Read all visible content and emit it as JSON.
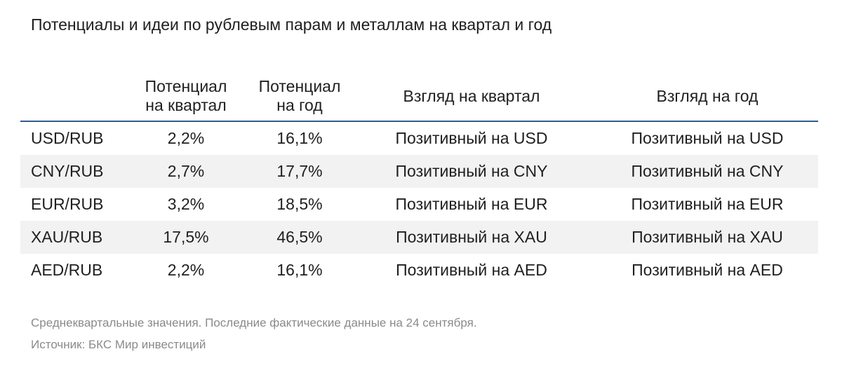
{
  "title": "Потенциалы и идеи по рублевым парам и металлам на квартал и год",
  "table": {
    "headers": {
      "pair": "",
      "potential_quarter": [
        "Потенциал",
        "на квартал"
      ],
      "potential_year": [
        "Потенциал",
        "на год"
      ],
      "view_quarter": "Взгляд на квартал",
      "view_year": "Взгляд на год"
    },
    "rows": [
      {
        "pair": "USD/RUB",
        "potential_quarter": "2,2%",
        "potential_year": "16,1%",
        "view_quarter": "Позитивный на USD",
        "view_year": "Позитивный на USD"
      },
      {
        "pair": "CNY/RUB",
        "potential_quarter": "2,7%",
        "potential_year": "17,7%",
        "view_quarter": "Позитивный на CNY",
        "view_year": "Позитивный на CNY"
      },
      {
        "pair": "EUR/RUB",
        "potential_quarter": "3,2%",
        "potential_year": "18,5%",
        "view_quarter": "Позитивный на EUR",
        "view_year": "Позитивный на EUR"
      },
      {
        "pair": "XAU/RUB",
        "potential_quarter": "17,5%",
        "potential_year": "46,5%",
        "view_quarter": "Позитивный на XAU",
        "view_year": "Позитивный на XAU"
      },
      {
        "pair": "AED/RUB",
        "potential_quarter": "2,2%",
        "potential_year": "16,1%",
        "view_quarter": "Позитивный на AED",
        "view_year": "Позитивный на AED"
      }
    ]
  },
  "footnotes": {
    "note": "Среднеквартальные значения. Последние фактические данные на 24 сентября.",
    "source": "Источник: БКС Мир инвестиций"
  },
  "colors": {
    "header_rule": "#1a5fb4",
    "alt_row": "#f2f2f2",
    "footnote_text": "#8a8a8a"
  }
}
